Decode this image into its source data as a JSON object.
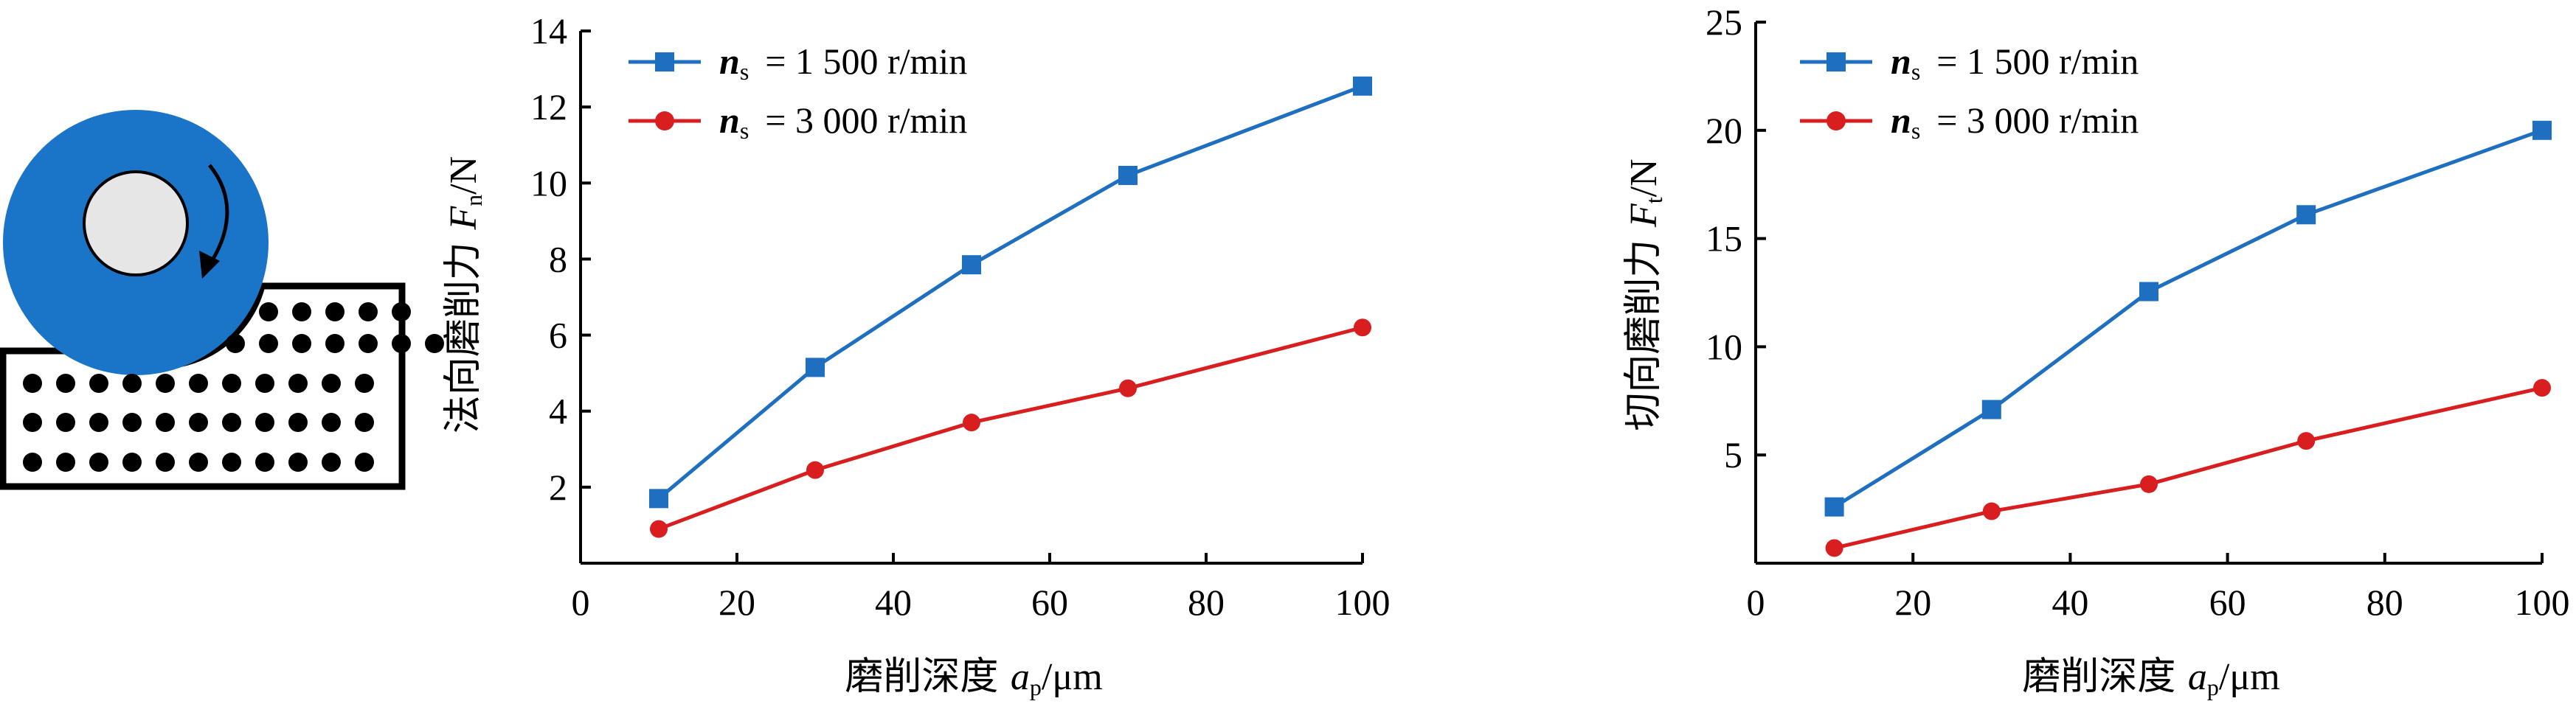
{
  "colors": {
    "series_blue": "#1f6fc0",
    "series_red": "#d81e1e",
    "wheel_blue": "#1a74c8",
    "hub_fill": "#e6e6e6",
    "dot": "#000000"
  },
  "illustration": {
    "wheel_icon": "grinding-wheel-icon",
    "rotation_icon": "rotation-arrow-icon",
    "workpiece_icon": "porous-workpiece-icon"
  },
  "legend": {
    "n_sym": "n",
    "n_sub": "s",
    "s1_value": "= 1 500 r/min",
    "s2_value": "= 3 000 r/min"
  },
  "xlabel": {
    "prefix": "磨削深度 ",
    "var": "a",
    "sub": "p",
    "unit": "/μm"
  },
  "chart_data": [
    {
      "type": "line",
      "ylabel": {
        "prefix": "法向磨削力 ",
        "var": "F",
        "sub": "n",
        "unit": "/N"
      },
      "x": [
        10,
        30,
        50,
        70,
        100
      ],
      "series": [
        {
          "name": "n_s = 1 500 r/min",
          "color": "#1f6fc0",
          "marker": "square",
          "values": [
            1.7,
            5.15,
            7.85,
            10.2,
            12.55
          ]
        },
        {
          "name": "n_s = 3 000 r/min",
          "color": "#d81e1e",
          "marker": "circle",
          "values": [
            0.9,
            2.45,
            3.7,
            4.6,
            6.2
          ]
        }
      ],
      "xlim": [
        0,
        100
      ],
      "ylim": [
        0,
        14
      ],
      "xticks": [
        "0",
        "20",
        "40",
        "60",
        "80",
        "100"
      ],
      "yticks": [
        "2",
        "4",
        "6",
        "8",
        "10",
        "12",
        "14"
      ],
      "legend": "top-left",
      "grid": false
    },
    {
      "type": "line",
      "ylabel": {
        "prefix": "切向磨削力 ",
        "var": "F",
        "sub": "t",
        "unit": "/N"
      },
      "x": [
        10,
        30,
        50,
        70,
        100
      ],
      "series": [
        {
          "name": "n_s = 1 500 r/min",
          "color": "#1f6fc0",
          "marker": "square",
          "values": [
            2.6,
            7.1,
            12.55,
            16.1,
            20.0
          ]
        },
        {
          "name": "n_s = 3 000 r/min",
          "color": "#d81e1e",
          "marker": "circle",
          "values": [
            0.7,
            2.4,
            3.65,
            5.65,
            8.1
          ]
        }
      ],
      "xlim": [
        0,
        100
      ],
      "ylim": [
        0,
        25
      ],
      "xticks": [
        "0",
        "20",
        "40",
        "60",
        "80",
        "100"
      ],
      "yticks": [
        "5",
        "10",
        "15",
        "20",
        "25"
      ],
      "legend": "top-left",
      "grid": false
    }
  ]
}
